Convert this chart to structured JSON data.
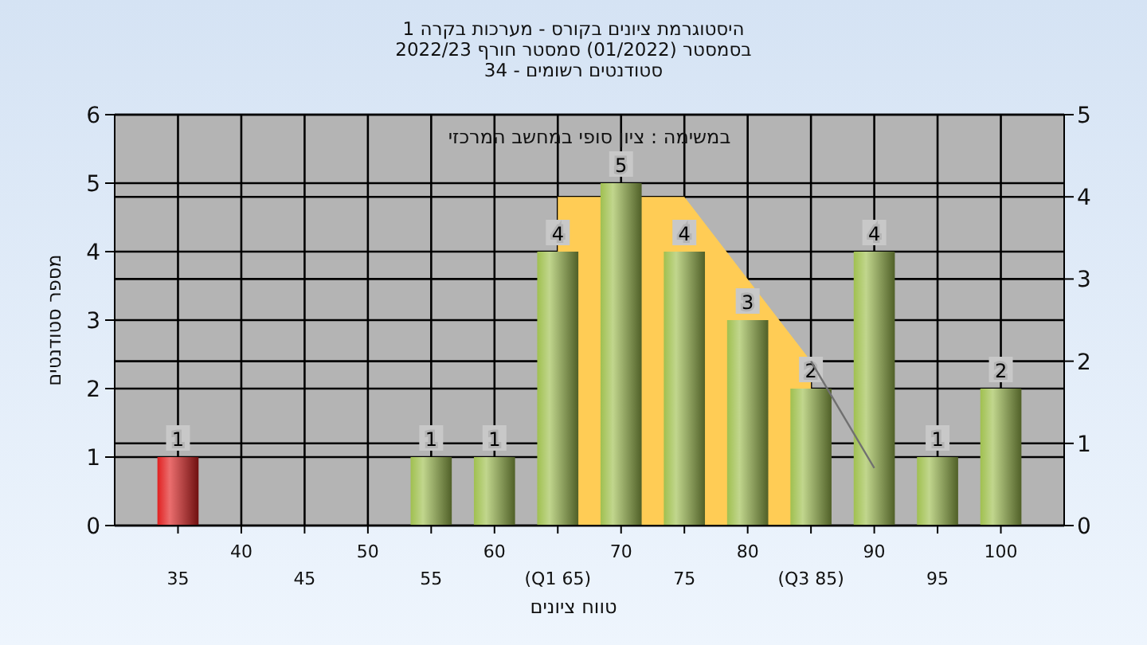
{
  "chart_data": {
    "type": "bar",
    "title": "היסטוגרמת ציונים בקורס - מערכות בקרה 1\nבסמסטר  (01/2022)  סמסטר חורף 2022/23\nסטודנטים רשומים - 34",
    "xlabel": "טווח ציונים",
    "ylabel": "מספר סטודנטים",
    "annotations": [
      "במשימה : ציון סופי במחשב המרכזי"
    ],
    "categories": [
      "35",
      "40",
      "45",
      "50",
      "55",
      "60",
      "(Q1 65)",
      "70",
      "75",
      "80",
      "(Q3 85)",
      "90",
      "95",
      "100"
    ],
    "series": [
      {
        "type": "area",
        "axis": "y2",
        "color": "#ffcc55",
        "values": [
          null,
          null,
          null,
          null,
          null,
          null,
          4,
          null,
          4,
          3,
          2,
          null,
          null,
          null
        ]
      },
      {
        "type": "line",
        "axis": "y2",
        "color": "#707070",
        "values": [
          null,
          null,
          null,
          null,
          null,
          null,
          null,
          null,
          null,
          null,
          2,
          0.7,
          null,
          null
        ]
      },
      {
        "colors": [
          "#e02020",
          null,
          null,
          null,
          "#a0c050",
          "#a0c050",
          "#a0c050",
          "#a0c050",
          "#a0c050",
          "#a0c050",
          "#a0c050",
          "#a0c050",
          "#a0c050",
          "#a0c050"
        ],
        "values": [
          1,
          null,
          null,
          null,
          1,
          1,
          4,
          5,
          4,
          3,
          2,
          4,
          1,
          2
        ],
        "value_labels": [
          "1",
          null,
          null,
          null,
          "1",
          "1",
          "4",
          "5",
          "4",
          "3",
          "2",
          "4",
          "1",
          "2"
        ]
      }
    ],
    "ylim": [
      0,
      6
    ],
    "yticks": [
      0,
      1,
      2,
      3,
      4,
      5,
      6
    ],
    "y2lim": [
      0,
      5
    ],
    "y2ticks": [
      0,
      1,
      2,
      3,
      4,
      5
    ],
    "grid": true
  }
}
